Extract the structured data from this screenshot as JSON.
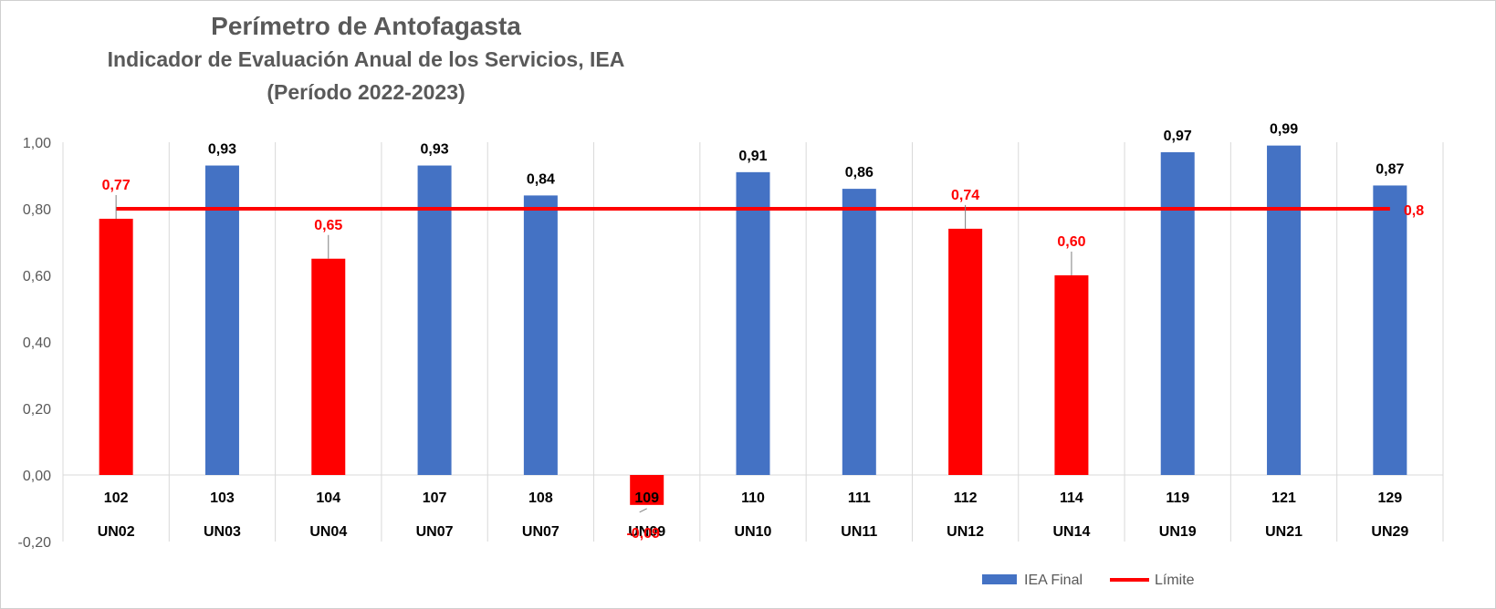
{
  "chart_data": {
    "type": "bar",
    "title": "Perímetro de Antofagasta",
    "subtitle": "Indicador de Evaluación Anual de los Servicios, IEA",
    "subtitle2": "(Período 2022-2023)",
    "categories": [
      "102",
      "103",
      "104",
      "107",
      "108",
      "109",
      "110",
      "111",
      "112",
      "114",
      "119",
      "121",
      "129"
    ],
    "categories_level2": [
      "UN02",
      "UN03",
      "UN04",
      "UN07",
      "UN07",
      "UN09",
      "UN10",
      "UN11",
      "UN12",
      "UN14",
      "UN19",
      "UN21",
      "UN29"
    ],
    "series": [
      {
        "name": "IEA Final",
        "values": [
          0.77,
          0.93,
          0.65,
          0.93,
          0.84,
          -0.09,
          0.91,
          0.86,
          0.74,
          0.6,
          0.97,
          0.99,
          0.87
        ],
        "value_labels": [
          "0,77",
          "0,93",
          "0,65",
          "0,93",
          "0,84",
          "-0,09",
          "0,91",
          "0,86",
          "0,74",
          "0,60",
          "0,97",
          "0,99",
          "0,87"
        ]
      },
      {
        "name": "Límite",
        "value": 0.8,
        "value_label": "0,8"
      }
    ],
    "ylim": [
      -0.2,
      1.0
    ],
    "yticks": [
      -0.2,
      0,
      0.2,
      0.4,
      0.6,
      0.8,
      1.0
    ],
    "ytick_labels": [
      "-0,20",
      "0,00",
      "0,20",
      "0,40",
      "0,60",
      "0,80",
      "1,00"
    ],
    "threshold": 0.8,
    "grid": "vertical category dividers",
    "legend_position": "bottom-right",
    "colors": {
      "above": "#4472C4",
      "below": "#FF0000",
      "limit": "#FF0000",
      "text": "#000000",
      "axis_text": "#595959",
      "grid": "#D9D9D9"
    }
  }
}
